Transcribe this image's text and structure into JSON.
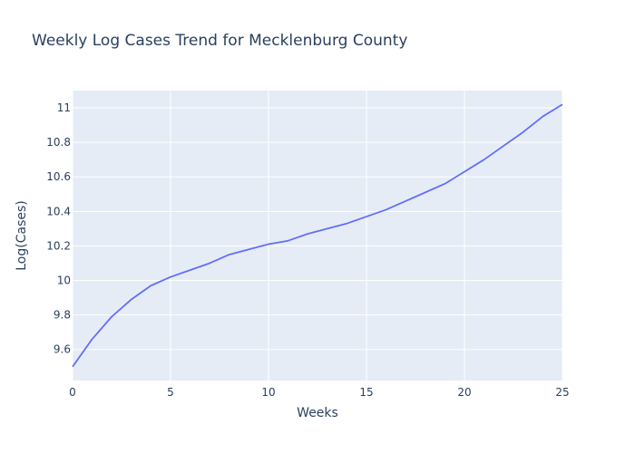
{
  "chart_data": {
    "type": "line",
    "title": "Weekly Log Cases Trend for Mecklenburg County",
    "xlabel": "Weeks",
    "ylabel": "Log(Cases)",
    "xlim": [
      0,
      25
    ],
    "ylim": [
      9.42,
      11.1
    ],
    "xticks": [
      0,
      5,
      10,
      15,
      20,
      25
    ],
    "xtick_labels": [
      "0",
      "5",
      "10",
      "15",
      "20",
      "25"
    ],
    "yticks": [
      9.6,
      9.8,
      10,
      10.2,
      10.4,
      10.6,
      10.8,
      11
    ],
    "ytick_labels": [
      "9.6",
      "9.8",
      "10",
      "10.2",
      "10.4",
      "10.6",
      "10.8",
      "11"
    ],
    "grid": true,
    "colors": {
      "plot_bg": "#e5ecf6",
      "grid": "#ffffff",
      "line": "#636efa",
      "text": "#2a3f5f"
    },
    "series": [
      {
        "x": [
          0,
          1,
          2,
          3,
          4,
          5,
          6,
          7,
          8,
          9,
          10,
          11,
          12,
          13,
          14,
          15,
          16,
          17,
          18,
          19,
          20,
          21,
          22,
          23,
          24,
          25
        ],
        "values": [
          9.5,
          9.66,
          9.79,
          9.89,
          9.97,
          10.02,
          10.06,
          10.1,
          10.15,
          10.18,
          10.21,
          10.23,
          10.27,
          10.3,
          10.33,
          10.37,
          10.41,
          10.46,
          10.51,
          10.56,
          10.63,
          10.7,
          10.78,
          10.86,
          10.95,
          11.02
        ]
      }
    ]
  }
}
